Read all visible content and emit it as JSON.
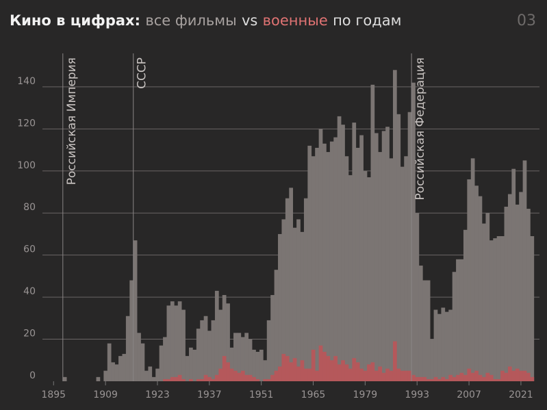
{
  "chart_data": {
    "type": "bar",
    "title_parts": [
      "Кино в цифрах:",
      "vs",
      "по годам"
    ],
    "page_number": "03",
    "x": [
      1895,
      1896,
      1897,
      1898,
      1899,
      1900,
      1901,
      1902,
      1903,
      1904,
      1905,
      1906,
      1907,
      1908,
      1909,
      1910,
      1911,
      1912,
      1913,
      1914,
      1915,
      1916,
      1917,
      1918,
      1919,
      1920,
      1921,
      1922,
      1923,
      1924,
      1925,
      1926,
      1927,
      1928,
      1929,
      1930,
      1931,
      1932,
      1933,
      1934,
      1935,
      1936,
      1937,
      1938,
      1939,
      1940,
      1941,
      1942,
      1943,
      1944,
      1945,
      1946,
      1947,
      1948,
      1949,
      1950,
      1951,
      1952,
      1953,
      1954,
      1955,
      1956,
      1957,
      1958,
      1959,
      1960,
      1961,
      1962,
      1963,
      1964,
      1965,
      1966,
      1967,
      1968,
      1969,
      1970,
      1971,
      1972,
      1973,
      1974,
      1975,
      1976,
      1977,
      1978,
      1979,
      1980,
      1981,
      1982,
      1983,
      1984,
      1985,
      1986,
      1987,
      1988,
      1989,
      1990,
      1991,
      1992,
      1993,
      1994,
      1995,
      1996,
      1997,
      1998,
      1999,
      2000,
      2001,
      2002,
      2003,
      2004,
      2005,
      2006,
      2007,
      2008,
      2009,
      2010,
      2011,
      2012,
      2013,
      2014,
      2015,
      2016,
      2017,
      2018,
      2019,
      2020,
      2021,
      2022,
      2023,
      2024
    ],
    "series": [
      {
        "name": "все фильмы",
        "color": "#7b7573",
        "values": [
          0,
          0,
          0,
          2,
          0,
          0,
          0,
          0,
          0,
          0,
          0,
          0,
          2,
          0,
          5,
          18,
          9,
          8,
          12,
          13,
          31,
          48,
          67,
          23,
          18,
          5,
          7,
          2,
          6,
          17,
          21,
          36,
          38,
          36,
          38,
          34,
          12,
          16,
          15,
          25,
          29,
          31,
          24,
          29,
          43,
          34,
          41,
          37,
          16,
          23,
          23,
          21,
          23,
          20,
          15,
          14,
          15,
          10,
          29,
          41,
          53,
          70,
          77,
          87,
          92,
          73,
          77,
          71,
          87,
          112,
          107,
          111,
          120,
          113,
          109,
          114,
          116,
          126,
          122,
          107,
          98,
          123,
          111,
          117,
          100,
          97,
          141,
          118,
          109,
          119,
          121,
          106,
          148,
          127,
          102,
          107,
          128,
          142,
          80,
          55,
          48,
          48,
          20,
          34,
          32,
          35,
          33,
          34,
          52,
          58,
          58,
          72,
          96,
          106,
          93,
          88,
          75,
          80,
          67,
          68,
          69,
          69,
          83,
          89,
          101,
          84,
          90,
          105,
          82,
          69
        ]
      },
      {
        "name": "военные",
        "color": "#b5585b",
        "values": [
          0,
          0,
          0,
          0,
          0,
          0,
          0,
          0,
          0,
          0,
          0,
          0,
          0,
          0,
          0,
          0,
          0,
          0,
          0,
          0,
          0,
          0,
          0,
          0,
          0,
          0,
          0,
          0,
          0,
          0,
          1,
          1,
          2,
          2,
          3,
          1,
          0,
          1,
          0,
          1,
          1,
          3,
          2,
          1,
          3,
          6,
          12,
          9,
          6,
          5,
          4,
          5,
          3,
          3,
          2,
          1,
          0,
          1,
          1,
          3,
          5,
          7,
          13,
          12,
          9,
          11,
          7,
          10,
          6,
          6,
          15,
          5,
          17,
          14,
          12,
          10,
          12,
          8,
          10,
          8,
          6,
          11,
          9,
          6,
          5,
          8,
          9,
          5,
          7,
          4,
          6,
          5,
          19,
          6,
          5,
          5,
          5,
          3,
          2,
          2,
          2,
          1,
          1,
          2,
          1,
          2,
          1,
          3,
          2,
          3,
          4,
          3,
          6,
          4,
          5,
          3,
          2,
          4,
          3,
          1,
          1,
          5,
          4,
          7,
          5,
          6,
          5,
          5,
          4,
          2
        ]
      }
    ],
    "annotations": [
      {
        "text": "Российская Империя",
        "x": 1898
      },
      {
        "text": "СССР",
        "x": 1917
      },
      {
        "text": "Российская Федерация",
        "x": 1992
      }
    ],
    "xlim": [
      1892,
      2026
    ],
    "xticks": [
      1895,
      1909,
      1923,
      1937,
      1951,
      1965,
      1979,
      1993,
      2007,
      2021
    ],
    "ylim": [
      0,
      152
    ],
    "yticks": [
      0,
      20,
      40,
      60,
      80,
      100,
      120,
      140
    ],
    "grid": true
  }
}
